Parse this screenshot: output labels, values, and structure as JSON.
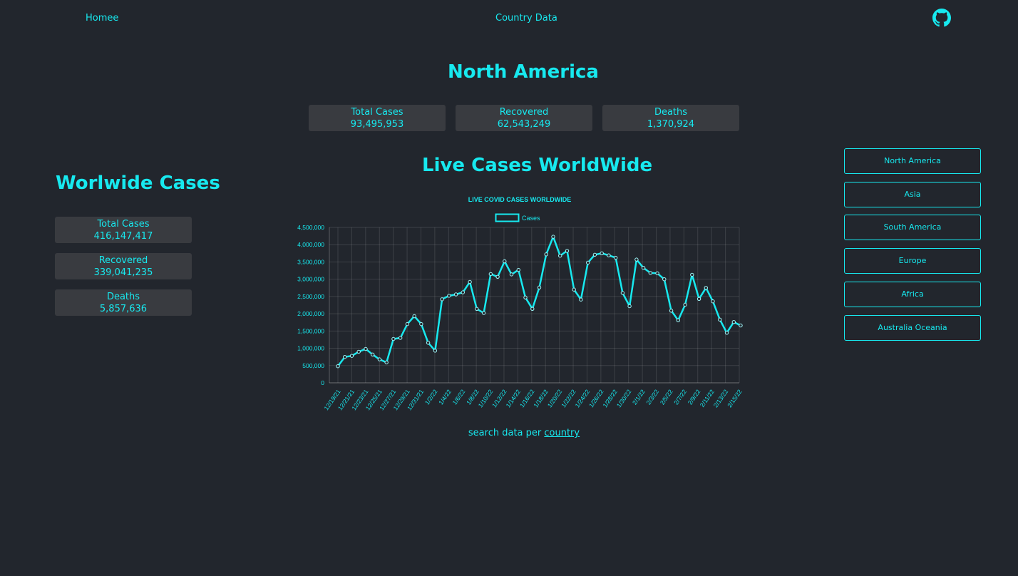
{
  "nav": {
    "home_label": "Homee",
    "country_label": "Country Data",
    "github_icon": "github-icon"
  },
  "region": {
    "title": "North America",
    "stats": [
      {
        "label": "Total Cases",
        "value": "93,495,953"
      },
      {
        "label": "Recovered",
        "value": "62,543,249"
      },
      {
        "label": "Deaths",
        "value": "1,370,924"
      }
    ]
  },
  "worldwide": {
    "title": "Worlwide Cases",
    "stats": [
      {
        "label": "Total Cases",
        "value": "416,147,417"
      },
      {
        "label": "Recovered",
        "value": "339,041,235"
      },
      {
        "label": "Deaths",
        "value": "5,857,636"
      }
    ]
  },
  "live": {
    "title": "Live Cases WorldWide"
  },
  "search": {
    "prefix": "search data per",
    "link": "country"
  },
  "continents": [
    "North America",
    "Asia",
    "South America",
    "Europe",
    "Africa",
    "Australia Oceania"
  ],
  "colors": {
    "accent": "#17e9ef",
    "background": "#22262d",
    "card": "#393b40"
  },
  "chart_data": {
    "type": "line",
    "title": "LIVE COVID CASES WORLDWIDE",
    "legend": "top",
    "grid": true,
    "ylim": [
      0,
      4500000
    ],
    "yticks": [
      "0",
      "500,000",
      "1,000,000",
      "1,500,000",
      "2,000,000",
      "2,500,000",
      "3,000,000",
      "3,500,000",
      "4,000,000",
      "4,500,000"
    ],
    "xtick_labels": [
      "12/19/21",
      "12/21/21",
      "12/23/21",
      "12/25/21",
      "12/27/21",
      "12/29/21",
      "12/31/21",
      "1/2/22",
      "1/4/22",
      "1/6/22",
      "1/8/22",
      "1/10/22",
      "1/12/22",
      "1/14/22",
      "1/16/22",
      "1/18/22",
      "1/20/22",
      "1/22/22",
      "1/24/22",
      "1/26/22",
      "1/28/22",
      "1/30/22",
      "2/1/22",
      "2/3/22",
      "2/5/22",
      "2/7/22",
      "2/9/22",
      "2/11/22",
      "2/13/22",
      "2/15/22"
    ],
    "series": [
      {
        "name": "Cases",
        "values": [
          480000,
          750000,
          780000,
          900000,
          980000,
          820000,
          680000,
          590000,
          1270000,
          1300000,
          1700000,
          1930000,
          1700000,
          1160000,
          930000,
          2420000,
          2520000,
          2560000,
          2620000,
          2920000,
          2140000,
          2020000,
          3150000,
          3070000,
          3520000,
          3140000,
          3270000,
          2470000,
          2140000,
          2760000,
          3720000,
          4230000,
          3680000,
          3820000,
          2700000,
          2410000,
          3480000,
          3710000,
          3750000,
          3690000,
          3620000,
          2600000,
          2220000,
          3570000,
          3330000,
          3180000,
          3170000,
          3000000,
          2090000,
          1810000,
          2260000,
          3130000,
          2430000,
          2750000,
          2360000,
          1830000,
          1450000,
          1760000,
          1660000
        ]
      }
    ]
  }
}
